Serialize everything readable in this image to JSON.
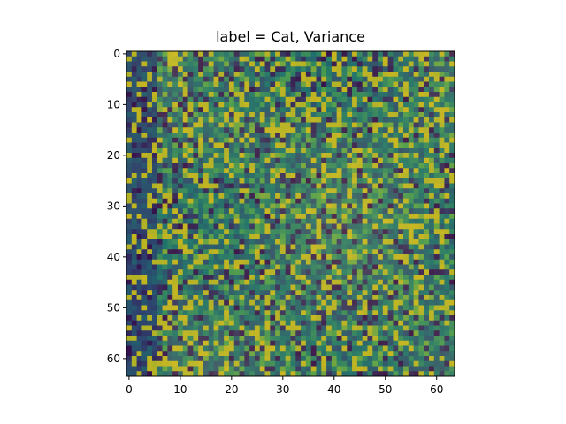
{
  "chart_data": {
    "type": "heatmap",
    "title": "label = Cat, Variance",
    "xlabel": "",
    "ylabel": "",
    "rows": 64,
    "cols": 64,
    "xlim": [
      -0.5,
      63.5
    ],
    "ylim": [
      63.5,
      -0.5
    ],
    "x_ticks": [
      0,
      10,
      20,
      30,
      40,
      50,
      60
    ],
    "y_ticks": [
      0,
      10,
      20,
      30,
      40,
      50,
      60
    ],
    "colormap": "viridis",
    "overlay": "semi-transparent grayscale photo blended over the variance map",
    "colors": {
      "low": "#440154",
      "mid_low": "#3b528b",
      "mid": "#21918c",
      "mid_high": "#5ec962",
      "high": "#fde725",
      "tint": "#8c7a32"
    },
    "grid": false,
    "legend": "none"
  }
}
